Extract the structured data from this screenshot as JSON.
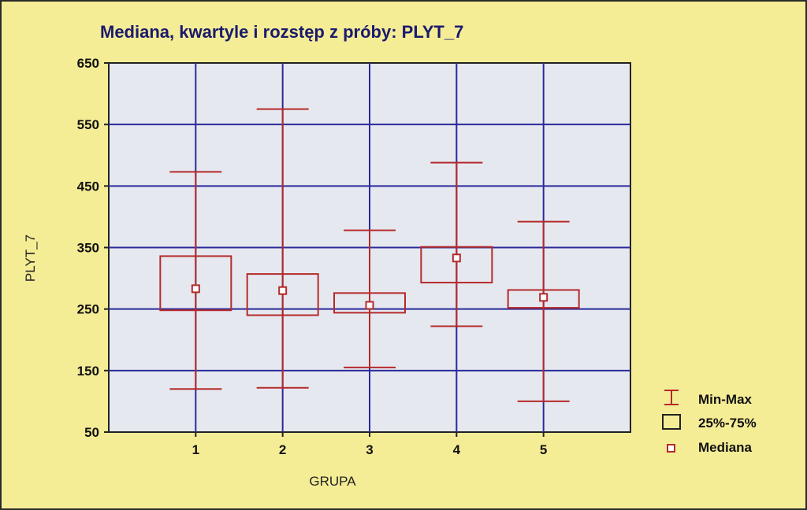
{
  "chart_data": {
    "type": "boxplot",
    "title": "Mediana, kwartyle i rozstęp z próby:   PLYT_7",
    "xlabel": "GRUPA",
    "ylabel": "PLYT_7",
    "ylim": [
      50,
      650
    ],
    "yticks": [
      50,
      150,
      250,
      350,
      450,
      550,
      650
    ],
    "categories": [
      "1",
      "2",
      "3",
      "4",
      "5"
    ],
    "boxes": [
      {
        "category": "1",
        "min": 120,
        "q1": 248,
        "median": 283,
        "q3": 336,
        "max": 473
      },
      {
        "category": "2",
        "min": 122,
        "q1": 240,
        "median": 280,
        "q3": 307,
        "max": 575
      },
      {
        "category": "3",
        "min": 155,
        "q1": 244,
        "median": 256,
        "q3": 276,
        "max": 378
      },
      {
        "category": "4",
        "min": 222,
        "q1": 293,
        "median": 333,
        "q3": 351,
        "max": 488
      },
      {
        "category": "5",
        "min": 100,
        "q1": 252,
        "median": 269,
        "q3": 281,
        "max": 392
      }
    ],
    "grid": true,
    "legend_position": "bottom-right",
    "legend": [
      "Min-Max",
      "25%-75%",
      "Mediana"
    ],
    "colors": {
      "box": "#b52a2a",
      "grid": "#2a2a9a",
      "plot_bg": "#e6e8f0",
      "page_bg": "#f5ed96"
    }
  }
}
